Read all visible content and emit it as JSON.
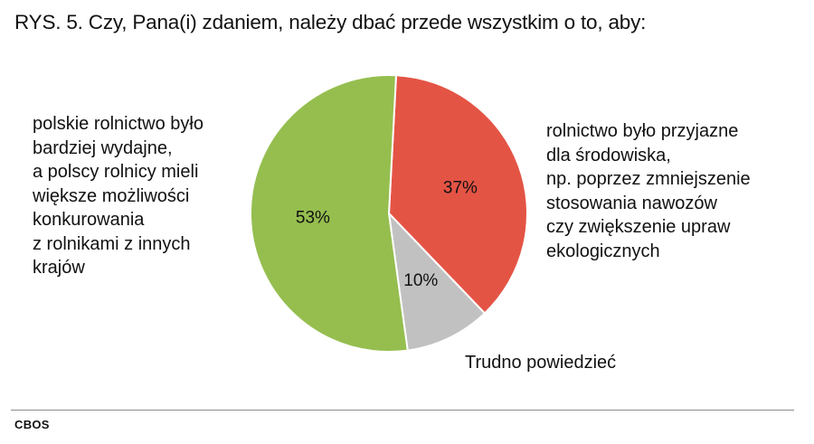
{
  "title": "RYS. 5. Czy, Pana(i) zdaniem, należy dbać przede wszystkim o to, aby:",
  "source": "CBOS",
  "chart_data": {
    "type": "pie",
    "slices": [
      {
        "label_lines": [
          "rolnictwo było przyjazne",
          "dla środowiska,",
          "np. poprzez zmniejszenie",
          "stosowania nawozów",
          "czy zwiększenie upraw",
          "ekologicznych"
        ],
        "value": 37,
        "value_label": "37%",
        "color": "#e45445"
      },
      {
        "label_lines": [
          "Trudno powiedzieć"
        ],
        "value": 10,
        "value_label": "10%",
        "color": "#c1c1c1"
      },
      {
        "label_lines": [
          "polskie rolnictwo było",
          "bardziej wydajne,",
          "a polscy rolnicy mieli",
          "większe możliwości",
          "konkurowania",
          "z rolnikami z innych",
          "krajów"
        ],
        "value": 53,
        "value_label": "53%",
        "color": "#95be4f"
      }
    ],
    "start_angle_deg": 3,
    "direction": "clockwise"
  }
}
